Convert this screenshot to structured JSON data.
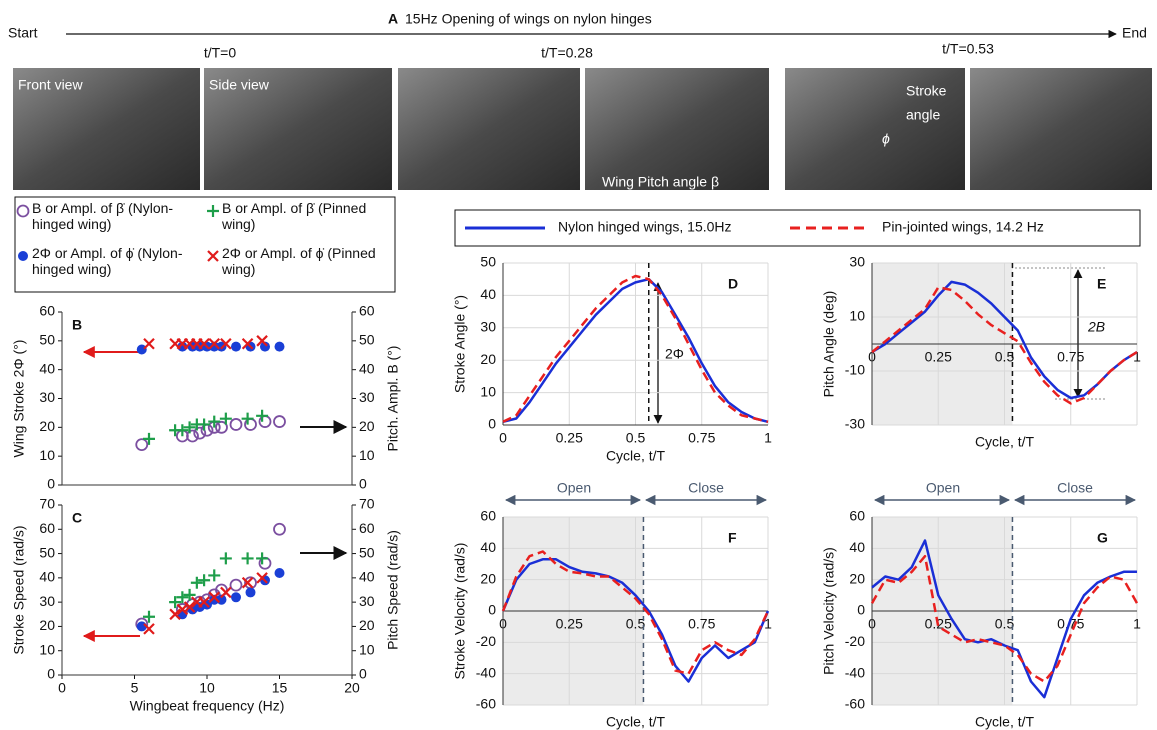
{
  "header": {
    "panel": "A",
    "title": "15Hz Opening of wings on nylon hinges",
    "start": "Start",
    "end": "End",
    "times": [
      "t/T=0",
      "t/T=0.28",
      "t/T=0.53"
    ],
    "photo_labels": {
      "front": "Front view",
      "side": "Side view",
      "stroke": "Stroke",
      "angle": "angle",
      "phi": "ϕ",
      "pitch": "Wing Pitch angle β"
    }
  },
  "chart_data": [
    {
      "type": "scatter",
      "label": "B",
      "y_label": "Wing Stroke 2Φ (°)",
      "y2_label": "Pitch. Ampl. B (°)",
      "xlim": [
        0,
        20
      ],
      "ylim": [
        0,
        60
      ],
      "yticks": [
        0,
        10,
        20,
        30,
        40,
        50,
        60
      ],
      "y2lim": [
        0,
        60
      ],
      "y2ticks": [
        0,
        10,
        20,
        30,
        40,
        50,
        60
      ],
      "series": [
        {
          "name": "B or Ampl. of β̇ (Nylon-hinged wing)",
          "color": "#7b4fa0",
          "marker": "circle-open",
          "axis": "y2",
          "x": [
            5.5,
            8.3,
            9,
            9.5,
            10,
            10.5,
            11,
            12,
            13,
            14,
            15
          ],
          "values": [
            14,
            17,
            17,
            18,
            19,
            20,
            20,
            21,
            21,
            22,
            22
          ]
        },
        {
          "name": "B or Ampl. of β̇ (Pinned wing)",
          "color": "#1e9e4a",
          "marker": "plus",
          "axis": "y2",
          "x": [
            6,
            7.8,
            8.3,
            8.8,
            9.3,
            9.8,
            10.5,
            11.3,
            12.8,
            13.8
          ],
          "values": [
            16,
            19,
            19,
            20,
            21,
            21,
            22,
            23,
            23,
            24
          ]
        },
        {
          "name": "2Φ or Ampl. of ϕ̇ (Nylon-hinged wing)",
          "color": "#1a3fd6",
          "marker": "circle",
          "axis": "y",
          "x": [
            5.5,
            8.3,
            9,
            9.5,
            10,
            10.5,
            11,
            12,
            13,
            14,
            15
          ],
          "values": [
            47,
            48,
            48,
            48,
            48,
            48,
            48,
            48,
            48,
            48,
            48
          ]
        },
        {
          "name": "2Φ or Ampl. of ϕ̇ (Pinned wing)",
          "color": "#e01b1b",
          "marker": "x",
          "axis": "y",
          "x": [
            6,
            7.8,
            8.3,
            8.8,
            9.3,
            9.8,
            10.5,
            11.3,
            12.8,
            13.8
          ],
          "values": [
            49,
            49,
            49,
            49,
            49,
            49,
            49,
            49,
            49,
            50
          ]
        }
      ]
    },
    {
      "type": "scatter",
      "label": "C",
      "x_label": "Wingbeat frequency (Hz)",
      "y_label": "Stroke Speed  (rad/s)",
      "y2_label": "Pitch Speed  (rad/s)",
      "xlim": [
        0,
        20
      ],
      "xticks": [
        0,
        5,
        10,
        15,
        20
      ],
      "ylim": [
        0,
        70
      ],
      "yticks": [
        0,
        10,
        20,
        30,
        40,
        50,
        60,
        70
      ],
      "y2lim": [
        0,
        70
      ],
      "y2ticks": [
        0,
        10,
        20,
        30,
        40,
        50,
        60,
        70
      ],
      "series": [
        {
          "color": "#7b4fa0",
          "marker": "circle-open",
          "axis": "y2",
          "x": [
            5.5,
            8.3,
            9,
            9.5,
            10,
            10.5,
            11,
            12,
            13,
            14,
            15
          ],
          "values": [
            21,
            27,
            29,
            30,
            31,
            33,
            35,
            37,
            38,
            46,
            60
          ]
        },
        {
          "color": "#1e9e4a",
          "marker": "plus",
          "axis": "y2",
          "x": [
            6,
            7.8,
            8.3,
            8.8,
            9.3,
            9.8,
            10.5,
            11.3,
            12.8,
            13.8
          ],
          "values": [
            24,
            30,
            32,
            33,
            38,
            39,
            41,
            48,
            48,
            48
          ]
        },
        {
          "color": "#1a3fd6",
          "marker": "circle",
          "axis": "y",
          "x": [
            5.5,
            8.3,
            9,
            9.5,
            10,
            10.5,
            11,
            12,
            13,
            14,
            15
          ],
          "values": [
            20,
            25,
            27,
            28,
            29,
            31,
            31,
            32,
            34,
            39,
            42
          ]
        },
        {
          "color": "#e01b1b",
          "marker": "x",
          "axis": "y",
          "x": [
            6,
            7.8,
            8.3,
            8.8,
            9.3,
            9.8,
            10.5,
            11.3,
            12.8,
            13.8
          ],
          "values": [
            19,
            25,
            27,
            28,
            30,
            30,
            32,
            34,
            38,
            40
          ]
        }
      ]
    },
    {
      "type": "line",
      "label": "D",
      "x_label": "Cycle, t/T",
      "y_label": "Stroke Angle (°)",
      "annotation": "2Φ",
      "grid": true,
      "phase_line": 0.55,
      "xlim": [
        0,
        1
      ],
      "xticks": [
        0,
        0.25,
        0.5,
        0.75,
        1
      ],
      "ylim": [
        0,
        50
      ],
      "yticks": [
        0,
        10,
        20,
        30,
        40,
        50
      ],
      "x": [
        0,
        0.05,
        0.1,
        0.15,
        0.2,
        0.25,
        0.3,
        0.35,
        0.4,
        0.45,
        0.5,
        0.55,
        0.6,
        0.65,
        0.7,
        0.75,
        0.8,
        0.85,
        0.9,
        0.95,
        1
      ],
      "series": [
        {
          "name": "Nylon hinged wings, 15.0Hz",
          "color": "#1a2fd6",
          "values": [
            1,
            2,
            7,
            13,
            19,
            24,
            29,
            34,
            38,
            42,
            44,
            45,
            41,
            34,
            27,
            19,
            12,
            7,
            4,
            2,
            1
          ]
        },
        {
          "name": "Pin-jointed wings, 14.2 Hz",
          "color": "#e8201f",
          "dash": true,
          "values": [
            1,
            3,
            9,
            15,
            21,
            26,
            31,
            36,
            40,
            44,
            46,
            45,
            40,
            33,
            25,
            17,
            10,
            6,
            3,
            2,
            1
          ]
        }
      ]
    },
    {
      "type": "line",
      "label": "E",
      "x_label": "Cycle, t/T",
      "y_label": "Pitch Angle (deg)",
      "annotation": "2B",
      "grid": true,
      "phase_line": 0.53,
      "shade_end": 0.53,
      "xlim": [
        0,
        1
      ],
      "xticks": [
        0,
        0.25,
        0.5,
        0.75,
        1
      ],
      "ylim": [
        -30,
        30
      ],
      "yticks": [
        -30,
        -10,
        10,
        30
      ],
      "x": [
        0,
        0.05,
        0.1,
        0.15,
        0.2,
        0.25,
        0.3,
        0.35,
        0.4,
        0.45,
        0.5,
        0.55,
        0.6,
        0.65,
        0.7,
        0.75,
        0.8,
        0.85,
        0.9,
        0.95,
        1
      ],
      "series": [
        {
          "color": "#1a2fd6",
          "values": [
            -3,
            0,
            4,
            8,
            12,
            18,
            23,
            22,
            19,
            15,
            10,
            5,
            -5,
            -12,
            -17,
            -20,
            -19,
            -15,
            -10,
            -6,
            -3
          ]
        },
        {
          "color": "#e8201f",
          "dash": true,
          "values": [
            -3,
            1,
            5,
            9,
            13,
            21,
            20,
            16,
            11,
            7,
            4,
            1,
            -7,
            -14,
            -19,
            -22,
            -20,
            -15,
            -10,
            -6,
            -3
          ]
        }
      ]
    },
    {
      "type": "line",
      "label": "F",
      "x_label": "Cycle, t/T",
      "y_label": "Stroke Velocity (rad/s)",
      "open_label": "Open",
      "close_label": "Close",
      "grid": true,
      "phase_line": 0.53,
      "shade_end": 0.53,
      "xlim": [
        0,
        1
      ],
      "xticks": [
        0,
        0.25,
        0.5,
        0.75,
        1
      ],
      "ylim": [
        -60,
        60
      ],
      "yticks": [
        -60,
        -40,
        -20,
        0,
        20,
        40,
        60
      ],
      "x": [
        0,
        0.05,
        0.1,
        0.15,
        0.2,
        0.25,
        0.3,
        0.35,
        0.4,
        0.45,
        0.5,
        0.55,
        0.6,
        0.65,
        0.7,
        0.75,
        0.8,
        0.85,
        0.9,
        0.95,
        1
      ],
      "series": [
        {
          "color": "#1a2fd6",
          "values": [
            0,
            20,
            30,
            33,
            33,
            28,
            25,
            24,
            22,
            18,
            10,
            0,
            -15,
            -35,
            -45,
            -30,
            -22,
            -30,
            -25,
            -20,
            0
          ]
        },
        {
          "color": "#e8201f",
          "dash": true,
          "values": [
            0,
            22,
            35,
            38,
            30,
            25,
            24,
            22,
            22,
            15,
            8,
            -2,
            -18,
            -38,
            -40,
            -25,
            -20,
            -25,
            -28,
            -18,
            0
          ]
        }
      ]
    },
    {
      "type": "line",
      "label": "G",
      "x_label": "Cycle, t/T",
      "y_label": "Pitch Velocity (rad/s)",
      "open_label": "Open",
      "close_label": "Close",
      "grid": true,
      "phase_line": 0.53,
      "shade_end": 0.53,
      "xlim": [
        0,
        1
      ],
      "xticks": [
        0,
        0.25,
        0.5,
        0.75,
        1
      ],
      "ylim": [
        -60,
        60
      ],
      "yticks": [
        -60,
        -40,
        -20,
        0,
        20,
        40,
        60
      ],
      "x": [
        0,
        0.05,
        0.1,
        0.15,
        0.2,
        0.25,
        0.3,
        0.35,
        0.4,
        0.45,
        0.5,
        0.55,
        0.6,
        0.65,
        0.7,
        0.75,
        0.8,
        0.85,
        0.9,
        0.95,
        1
      ],
      "series": [
        {
          "color": "#1a2fd6",
          "values": [
            15,
            22,
            20,
            28,
            45,
            10,
            -5,
            -18,
            -20,
            -18,
            -22,
            -25,
            -45,
            -55,
            -30,
            -5,
            10,
            18,
            22,
            25,
            25
          ]
        },
        {
          "color": "#e8201f",
          "dash": true,
          "values": [
            5,
            20,
            18,
            25,
            35,
            -10,
            -15,
            -20,
            -18,
            -20,
            -22,
            -28,
            -40,
            -45,
            -35,
            -15,
            5,
            15,
            22,
            20,
            5
          ]
        }
      ]
    }
  ]
}
